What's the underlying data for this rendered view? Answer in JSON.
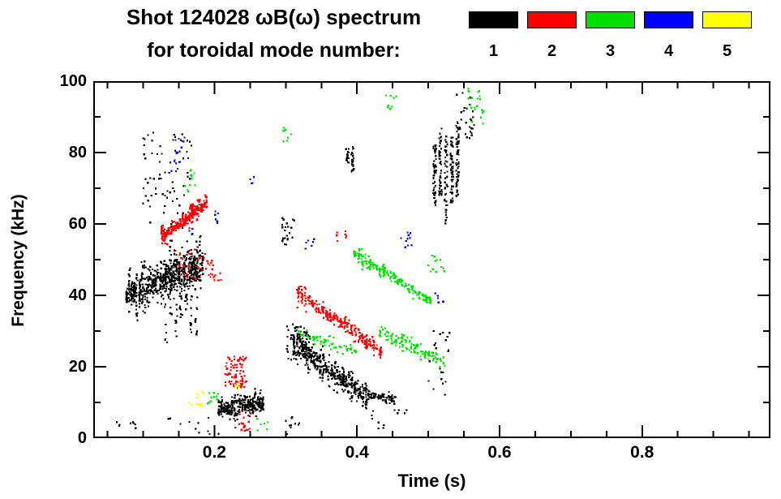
{
  "header": {
    "title_line1": "Shot 124028 ωB(ω) spectrum",
    "title_line2": "for toroidal mode number:"
  },
  "legend": {
    "entries": [
      {
        "label": "1",
        "color": "#000000"
      },
      {
        "label": "2",
        "color": "#ff0000"
      },
      {
        "label": "3",
        "color": "#00e000"
      },
      {
        "label": "4",
        "color": "#0000ff"
      },
      {
        "label": "5",
        "color": "#ffff00"
      }
    ]
  },
  "chart_data": {
    "type": "scatter",
    "title": "Shot 124028 ωB(ω) spectrum for toroidal mode number",
    "xlabel": "Time (s)",
    "ylabel": "Frequency (kHz)",
    "xlim": [
      0.03,
      0.98
    ],
    "ylim": [
      0,
      100
    ],
    "xticks": [
      0.2,
      0.4,
      0.6,
      0.8
    ],
    "xtick_labels": [
      "0.2",
      "0.4",
      "0.6",
      "0.8"
    ],
    "x_minor_step": 0.05,
    "yticks": [
      0,
      20,
      40,
      60,
      80,
      100
    ],
    "ytick_labels": [
      "0",
      "20",
      "40",
      "60",
      "80",
      "100"
    ],
    "y_minor_step": 10,
    "grid": false,
    "legend_position": "top-right",
    "series": [
      {
        "name": "n=1",
        "color": "#000000",
        "clusters": [
          {
            "type": "band",
            "t": [
              0.075,
              0.185
            ],
            "f": [
              40,
              49
            ],
            "spread": 6.5,
            "count": 700,
            "cols": 30
          },
          {
            "type": "vstreak",
            "t": [
              0.128,
              0.178
            ],
            "f": [
              25,
              57
            ],
            "count": 130,
            "cols": 7
          },
          {
            "type": "box",
            "t": [
              0.1,
              0.17
            ],
            "f": [
              58,
              86
            ],
            "count": 70
          },
          {
            "type": "band",
            "t": [
              0.205,
              0.27
            ],
            "f": [
              8,
              10
            ],
            "spread": 3.5,
            "count": 320,
            "cols": 18
          },
          {
            "type": "band",
            "t": [
              0.31,
              0.415
            ],
            "f": [
              27,
              11
            ],
            "spread": 5.5,
            "count": 480,
            "cols": 26
          },
          {
            "type": "box",
            "t": [
              0.3,
              0.335
            ],
            "f": [
              22,
              32
            ],
            "count": 60
          },
          {
            "type": "box",
            "t": [
              0.295,
              0.312
            ],
            "f": [
              54,
              62
            ],
            "count": 25
          },
          {
            "type": "vstreak",
            "t": [
              0.383,
              0.397
            ],
            "f": [
              74,
              86
            ],
            "count": 40,
            "cols": 2
          },
          {
            "type": "vstreak",
            "t": [
              0.505,
              0.545
            ],
            "f": [
              58,
              88
            ],
            "count": 260,
            "cols": 5
          },
          {
            "type": "box",
            "t": [
              0.54,
              0.565
            ],
            "f": [
              84,
              97
            ],
            "count": 28
          },
          {
            "type": "box",
            "t": [
              0.5,
              0.53
            ],
            "f": [
              12,
              30
            ],
            "count": 22
          },
          {
            "type": "band",
            "t": [
              0.415,
              0.455
            ],
            "f": [
              12,
              11
            ],
            "spread": 2,
            "count": 70,
            "cols": 10
          },
          {
            "type": "box",
            "t": [
              0.06,
              0.09
            ],
            "f": [
              2,
              6
            ],
            "count": 8
          },
          {
            "type": "box",
            "t": [
              0.13,
              0.21
            ],
            "f": [
              1,
              6
            ],
            "count": 12
          },
          {
            "type": "box",
            "t": [
              0.3,
              0.32
            ],
            "f": [
              1,
              6
            ],
            "count": 10
          },
          {
            "type": "box",
            "t": [
              0.42,
              0.47
            ],
            "f": [
              2,
              8
            ],
            "count": 12
          }
        ]
      },
      {
        "name": "n=2",
        "color": "#ff0000",
        "clusters": [
          {
            "type": "band",
            "t": [
              0.125,
              0.19
            ],
            "f": [
              56,
              66
            ],
            "spread": 3.5,
            "count": 300,
            "cols": 20
          },
          {
            "type": "box",
            "t": [
              0.145,
              0.2
            ],
            "f": [
              44,
              53
            ],
            "count": 45
          },
          {
            "type": "band",
            "t": [
              0.315,
              0.435
            ],
            "f": [
              41,
              24
            ],
            "spread": 3,
            "count": 280,
            "cols": 24
          },
          {
            "type": "box",
            "t": [
              0.215,
              0.245
            ],
            "f": [
              14,
              23
            ],
            "count": 80
          },
          {
            "type": "box",
            "t": [
              0.225,
              0.25
            ],
            "f": [
              2,
              8
            ],
            "count": 20
          },
          {
            "type": "box",
            "t": [
              0.19,
              0.21
            ],
            "f": [
              44,
              48
            ],
            "count": 10
          },
          {
            "type": "box",
            "t": [
              0.37,
              0.385
            ],
            "f": [
              55,
              58
            ],
            "count": 8
          }
        ]
      },
      {
        "name": "n=3",
        "color": "#00e000",
        "clusters": [
          {
            "type": "band",
            "t": [
              0.395,
              0.505
            ],
            "f": [
              52,
              38
            ],
            "spread": 2.5,
            "count": 220,
            "cols": 22
          },
          {
            "type": "band",
            "t": [
              0.43,
              0.525
            ],
            "f": [
              30,
              21
            ],
            "spread": 2,
            "count": 130,
            "cols": 18
          },
          {
            "type": "band",
            "t": [
              0.315,
              0.4
            ],
            "f": [
              30,
              24
            ],
            "spread": 2,
            "count": 70,
            "cols": 16
          },
          {
            "type": "box",
            "t": [
              0.555,
              0.578
            ],
            "f": [
              88,
              98
            ],
            "count": 22
          },
          {
            "type": "box",
            "t": [
              0.295,
              0.31
            ],
            "f": [
              83,
              87
            ],
            "count": 8
          },
          {
            "type": "box",
            "t": [
              0.44,
              0.455
            ],
            "f": [
              92,
              97
            ],
            "count": 8
          },
          {
            "type": "box",
            "t": [
              0.158,
              0.175
            ],
            "f": [
              69,
              76
            ],
            "count": 12
          },
          {
            "type": "box",
            "t": [
              0.19,
              0.205
            ],
            "f": [
              9,
              13
            ],
            "count": 10
          },
          {
            "type": "box",
            "t": [
              0.26,
              0.275
            ],
            "f": [
              2,
              6
            ],
            "count": 6
          },
          {
            "type": "box",
            "t": [
              0.5,
              0.525
            ],
            "f": [
              46,
              52
            ],
            "count": 12
          }
        ]
      },
      {
        "name": "n=4",
        "color": "#0000ff",
        "clusters": [
          {
            "type": "box",
            "t": [
              0.135,
              0.165
            ],
            "f": [
              74,
              84
            ],
            "count": 18
          },
          {
            "type": "box",
            "t": [
              0.2,
              0.215
            ],
            "f": [
              60,
              64
            ],
            "count": 6
          },
          {
            "type": "box",
            "t": [
              0.325,
              0.34
            ],
            "f": [
              53,
              57
            ],
            "count": 6
          },
          {
            "type": "box",
            "t": [
              0.46,
              0.478
            ],
            "f": [
              53,
              58
            ],
            "count": 10
          },
          {
            "type": "box",
            "t": [
              0.508,
              0.522
            ],
            "f": [
              37,
              42
            ],
            "count": 6
          },
          {
            "type": "box",
            "t": [
              0.25,
              0.262
            ],
            "f": [
              71,
              75
            ],
            "count": 4
          },
          {
            "type": "box",
            "t": [
              0.155,
              0.17
            ],
            "f": [
              57,
              60
            ],
            "count": 4
          }
        ]
      },
      {
        "name": "n=5",
        "color": "#ffff00",
        "clusters": [
          {
            "type": "box",
            "t": [
              0.163,
              0.185
            ],
            "f": [
              9,
              13
            ],
            "count": 14
          },
          {
            "type": "box",
            "t": [
              0.225,
              0.238
            ],
            "f": [
              12,
              15
            ],
            "count": 6
          }
        ]
      }
    ]
  }
}
